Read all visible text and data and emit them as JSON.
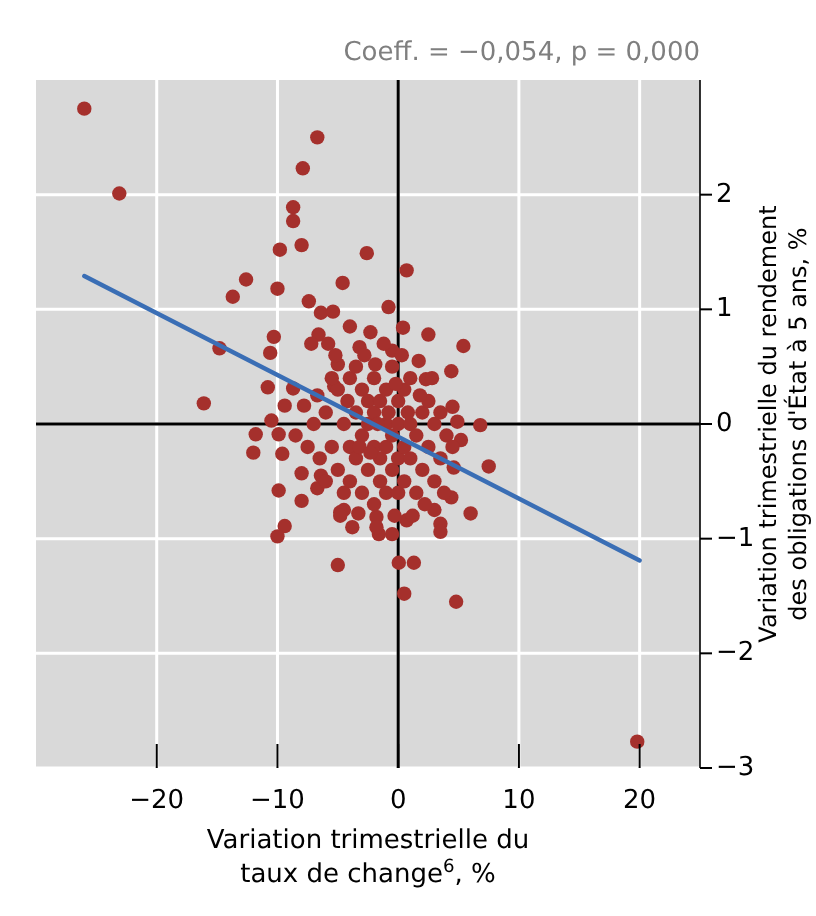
{
  "chart_data": {
    "type": "scatter",
    "title": "Coeff. = −0,054, p = 0,000",
    "xlabel": "Variation trimestrielle du taux de change$^{6}$, %",
    "ylabel": "Variation trimestrielle du rendement des obligations d'État à 5 ans, %",
    "xlim": [
      -30,
      25
    ],
    "xticks": [
      -20,
      -10,
      0,
      10,
      20
    ],
    "ylim": [
      -3,
      3
    ],
    "yticks": [
      -3,
      -2,
      -1,
      0,
      1,
      2
    ],
    "grid": true,
    "series": [
      {
        "marker": "circle",
        "color": "#a5302c",
        "x": [
          -26,
          -23.1,
          -6.7,
          -7.9,
          -8.7,
          -8.7,
          -8,
          -9.8,
          -2.6,
          0.7,
          -12.6,
          -13.7,
          -10,
          -4.6,
          -7.4,
          -6.4,
          -5.4,
          -0.8,
          0.4,
          2.5,
          -10.3,
          -10.6,
          -14.8,
          -6.6,
          -7.2,
          -5.8,
          -2.3,
          -5,
          -10.8,
          -8.7,
          -9.4,
          -16.1,
          -7.8,
          -6.7,
          -10.5,
          -11.8,
          5.4,
          -4,
          -3.2,
          -1.9,
          -0.5,
          1.7,
          4.4,
          2.3,
          -5.3,
          4.5,
          4.9,
          6.8,
          -12,
          -9.6,
          -9.9,
          -8,
          -6.4,
          -9.9,
          -8,
          -6.7,
          -9.4,
          -10,
          -4.5,
          -3.3,
          -1.8,
          0.7,
          3,
          3.5,
          4.4,
          6,
          7.5,
          5.2,
          4.6,
          -1.6,
          -0.5,
          -5,
          0.05,
          1.3,
          0.5,
          4.8,
          -4.8,
          3.5,
          19.8,
          -6,
          -5.5,
          -5,
          -5,
          -4.5,
          -4.5,
          -4,
          -4,
          -4,
          -3.5,
          -3.5,
          -3.5,
          -3,
          -3,
          -3,
          -2.5,
          -2.5,
          -2.5,
          -2,
          -2,
          -2,
          -2,
          -1.5,
          -1.5,
          -1.5,
          -1,
          -1,
          -1,
          -1,
          -0.5,
          -0.5,
          -0.5,
          0,
          0,
          0,
          0,
          0.5,
          0.5,
          0.5,
          1,
          1,
          1,
          1.5,
          1.5,
          2,
          2,
          2.5,
          2.5,
          3,
          3,
          3.5,
          3.5,
          4,
          -6.5,
          -7,
          -5.5,
          -4.8,
          -3.8,
          -2.8,
          -1.2,
          0.3,
          2.2,
          1.2,
          -0.3,
          -1.8,
          -6,
          -7.5,
          -8.5,
          -3.2,
          -1.7,
          0.8,
          -0.8,
          -2.3,
          1.8,
          -4.2,
          3.8,
          -5.2,
          4.5,
          2.8,
          -0.2
        ],
        "values": [
          2.75,
          2.01,
          2.5,
          2.23,
          1.89,
          1.77,
          1.56,
          1.52,
          1.49,
          1.34,
          1.26,
          1.11,
          1.18,
          1.23,
          1.07,
          0.97,
          0.98,
          1.02,
          0.84,
          0.78,
          0.76,
          0.62,
          0.66,
          0.78,
          0.7,
          0.7,
          0.8,
          0.52,
          0.32,
          0.31,
          0.16,
          0.18,
          0.16,
          0.25,
          0.03,
          -0.09,
          0.68,
          0.85,
          0.67,
          0.52,
          0.64,
          0.55,
          0.46,
          0.39,
          0.33,
          0.15,
          0.02,
          -0.01,
          -0.25,
          -0.26,
          -0.09,
          -0.43,
          -0.45,
          -0.58,
          -0.67,
          -0.56,
          -0.89,
          -0.98,
          -0.75,
          -0.78,
          -0.81,
          -0.84,
          -0.75,
          -0.87,
          -0.64,
          -0.78,
          -0.37,
          -0.14,
          -0.38,
          -0.96,
          -0.96,
          -1.23,
          -1.21,
          -1.21,
          -1.48,
          -1.55,
          -0.77,
          -0.94,
          -2.77,
          0.1,
          -0.2,
          0.3,
          -0.4,
          0,
          -0.6,
          0.4,
          -0.2,
          -0.5,
          0.1,
          -0.3,
          0.5,
          -0.1,
          -0.6,
          0.3,
          0.2,
          -0.4,
          0,
          -0.2,
          0.4,
          -0.7,
          0.1,
          -0.3,
          0.2,
          -0.5,
          0,
          -0.2,
          0.3,
          -0.6,
          -0.1,
          0.5,
          -0.4,
          -0.3,
          0.2,
          -0.6,
          0,
          -0.2,
          0.3,
          -0.5,
          0,
          -0.3,
          0.4,
          -0.1,
          -0.6,
          0.1,
          -0.4,
          -0.2,
          0.2,
          0,
          -0.5,
          0.1,
          -0.3,
          -0.1,
          -0.3,
          0,
          0.4,
          -0.8,
          -0.9,
          0.6,
          0.7,
          0.6,
          -0.7,
          -0.8,
          -0.8,
          -0.9,
          -0.5,
          -0.2,
          -0.1,
          -0.2,
          0,
          0.1,
          0.1,
          -0.25,
          0.25,
          0.2,
          -0.6,
          0.6,
          -0.2,
          0.4,
          0.35
        ]
      },
      {
        "type": "line",
        "color": "#3a6eb5",
        "x": [
          -26,
          20
        ],
        "values": [
          1.29,
          -1.19
        ]
      }
    ]
  }
}
